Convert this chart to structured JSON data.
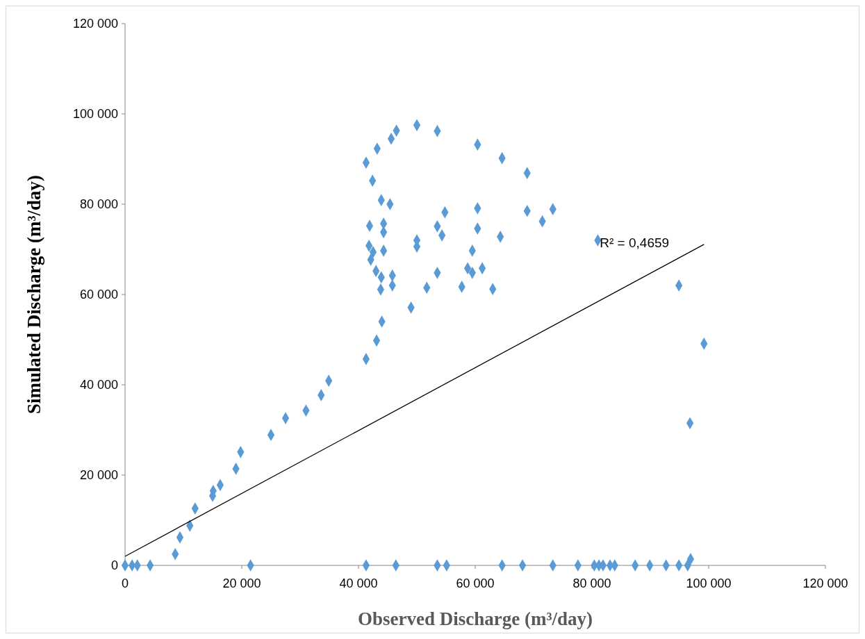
{
  "chart_data": {
    "type": "scatter",
    "xlabel": "Observed Discharge (m³/day)",
    "ylabel": "Simulated Discharge (m³/day)",
    "xlim": [
      0,
      120000
    ],
    "ylim": [
      0,
      120000
    ],
    "xticks": [
      0,
      {
        "value": 20000,
        "label": "20 000"
      },
      {
        "value": 40000,
        "label": "40 000"
      },
      {
        "value": 60000,
        "label": "60 000"
      },
      {
        "value": 80000,
        "label": "80 000"
      },
      {
        "value": 100000,
        "label": "100 000"
      },
      {
        "value": 120000,
        "label": "120 000"
      }
    ],
    "yticks": [
      0,
      {
        "value": 20000,
        "label": "20 000"
      },
      {
        "value": 40000,
        "label": "40 000"
      },
      {
        "value": 60000,
        "label": "60 000"
      },
      {
        "value": 80000,
        "label": "80 000"
      },
      {
        "value": 100000,
        "label": "100 000"
      },
      {
        "value": 120000,
        "label": "120 000"
      }
    ],
    "grid": false,
    "marker": "diamond",
    "series": [
      {
        "color": "#5b9bd5",
        "x": [
          41300,
          42400,
          43200,
          45600,
          46500,
          50000,
          53500,
          60400,
          64600,
          68900,
          43900,
          45400,
          41900,
          44300,
          44300,
          54800,
          60400,
          68900,
          71500,
          73300,
          41800,
          42500,
          44300,
          42100,
          53500,
          54300,
          50000,
          50000,
          60400,
          64300,
          59500,
          43000,
          43900,
          45800,
          43800,
          45800,
          51700,
          57700,
          58700,
          59500,
          61200,
          53500,
          63000,
          49000,
          44000,
          43100,
          41300,
          81000,
          94900,
          99200,
          96800,
          34900,
          33600,
          31000,
          27500,
          25000,
          19800,
          19000,
          16300,
          15100,
          15000,
          12000,
          11100,
          9400,
          8600,
          96900,
          0,
          1200,
          2100,
          4300,
          21500,
          41300,
          46400,
          53500,
          55100,
          64600,
          68100,
          73300,
          77600,
          80400,
          81200,
          81900,
          83100,
          83900,
          87400,
          89900,
          92700,
          94900,
          96400
        ],
        "values": [
          89200,
          85200,
          92300,
          94500,
          96300,
          97500,
          96200,
          93200,
          90200,
          86900,
          80900,
          80000,
          75200,
          75700,
          73800,
          78200,
          79100,
          78500,
          76200,
          78900,
          70800,
          69400,
          69700,
          67700,
          75100,
          73100,
          72000,
          70600,
          74600,
          72800,
          69700,
          65200,
          63800,
          64200,
          61100,
          62000,
          61500,
          61700,
          65800,
          64800,
          65800,
          64800,
          61200,
          57100,
          54000,
          49800,
          45700,
          72000,
          62000,
          49100,
          31500,
          40900,
          37700,
          34300,
          32600,
          28900,
          25100,
          21400,
          17800,
          16500,
          15400,
          12600,
          8800,
          6200,
          2500,
          1400,
          0,
          0,
          0,
          0,
          0,
          0,
          0,
          0,
          0,
          0,
          0,
          0,
          0,
          0,
          0,
          0,
          0,
          0,
          0,
          0,
          0,
          0,
          0
        ]
      },
      {
        "type": "line",
        "color": "#000000",
        "line_style": "solid",
        "marker": "none",
        "x": [
          0,
          99200
        ],
        "values": [
          2000,
          71100
        ]
      }
    ],
    "annotations": [
      "R² = 0,4659"
    ]
  }
}
